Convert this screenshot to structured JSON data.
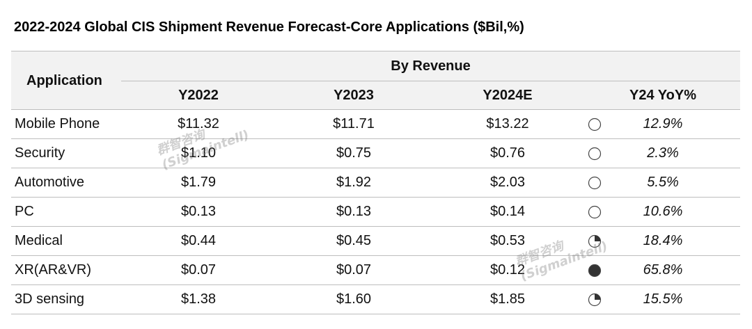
{
  "chart_data": {
    "type": "table",
    "title": "2022-2024 Global CIS Shipment Revenue Forecast-Core Applications ($Bil,%)",
    "row_header": "Application",
    "group_header": "By Revenue",
    "columns": [
      "Y2022",
      "Y2023",
      "Y2024E",
      "Y24 YoY%"
    ],
    "rows": [
      {
        "application": "Mobile Phone",
        "y2022": "$11.32",
        "y2023": "$11.71",
        "y2024e": "$13.22",
        "yoy": "12.9%",
        "yoy_value": 12.9,
        "harvey": 0
      },
      {
        "application": "Security",
        "y2022": "$1.10",
        "y2023": "$0.75",
        "y2024e": "$0.76",
        "yoy": "2.3%",
        "yoy_value": 2.3,
        "harvey": 0
      },
      {
        "application": "Automotive",
        "y2022": "$1.79",
        "y2023": "$1.92",
        "y2024e": "$2.03",
        "yoy": "5.5%",
        "yoy_value": 5.5,
        "harvey": 0
      },
      {
        "application": "PC",
        "y2022": "$0.13",
        "y2023": "$0.13",
        "y2024e": "$0.14",
        "yoy": "10.6%",
        "yoy_value": 10.6,
        "harvey": 0
      },
      {
        "application": "Medical",
        "y2022": "$0.44",
        "y2023": "$0.45",
        "y2024e": "$0.53",
        "yoy": "18.4%",
        "yoy_value": 18.4,
        "harvey": 0.25
      },
      {
        "application": "XR(AR&VR)",
        "y2022": "$0.07",
        "y2023": "$0.07",
        "y2024e": "$0.12",
        "yoy": "65.8%",
        "yoy_value": 65.8,
        "harvey": 1
      },
      {
        "application": "3D sensing",
        "y2022": "$1.38",
        "y2023": "$1.60",
        "y2024e": "$1.85",
        "yoy": "15.5%",
        "yoy_value": 15.5,
        "harvey": 0.25
      }
    ]
  },
  "watermark": {
    "cn": "群智咨询",
    "en": "(Sigmaintell)"
  },
  "colors": {
    "header_bg": "#f2f2f2",
    "border": "#bdbdbd",
    "harvey_fill": "#333333"
  }
}
